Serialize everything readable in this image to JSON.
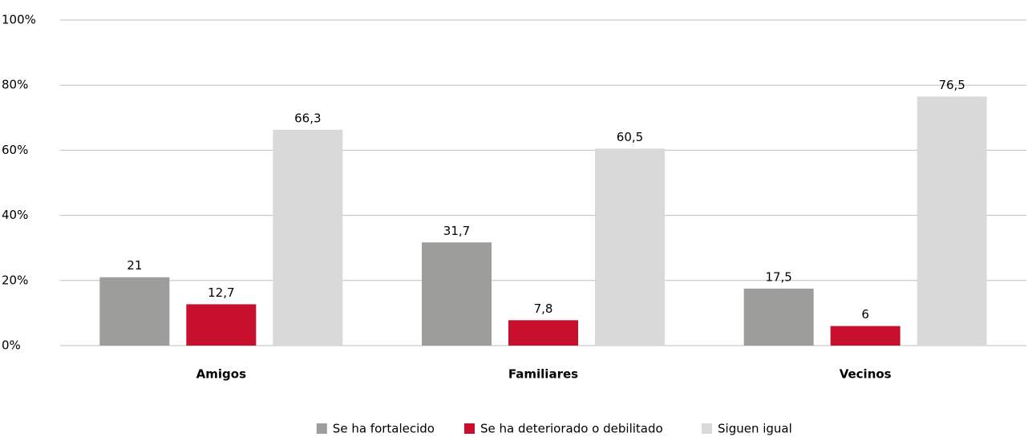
{
  "chart_data": {
    "type": "bar",
    "categories": [
      "Amigos",
      "Familiares",
      "Vecinos"
    ],
    "series": [
      {
        "name": "Se ha fortalecido",
        "color": "#9d9d9c",
        "values": [
          21,
          31.7,
          17.5
        ],
        "value_labels": [
          "21",
          "31,7",
          "17,5"
        ]
      },
      {
        "name": "Se ha deteriorado o debilitado",
        "color": "#c8102e",
        "values": [
          12.7,
          7.8,
          6
        ],
        "value_labels": [
          "12,7",
          "7,8",
          "6"
        ]
      },
      {
        "name": "Siguen igual",
        "color": "#d9d9d9",
        "values": [
          66.3,
          60.5,
          76.5
        ],
        "value_labels": [
          "66,3",
          "60,5",
          "76,5"
        ]
      }
    ],
    "ylim": [
      0,
      100
    ],
    "yticks": [
      {
        "value": 0,
        "label": "0%"
      },
      {
        "value": 20,
        "label": "20%"
      },
      {
        "value": 40,
        "label": "40%"
      },
      {
        "value": 60,
        "label": "60%"
      },
      {
        "value": 80,
        "label": "80%"
      },
      {
        "value": 100,
        "label": "100%"
      }
    ],
    "grid": true,
    "legend": "bottom"
  }
}
